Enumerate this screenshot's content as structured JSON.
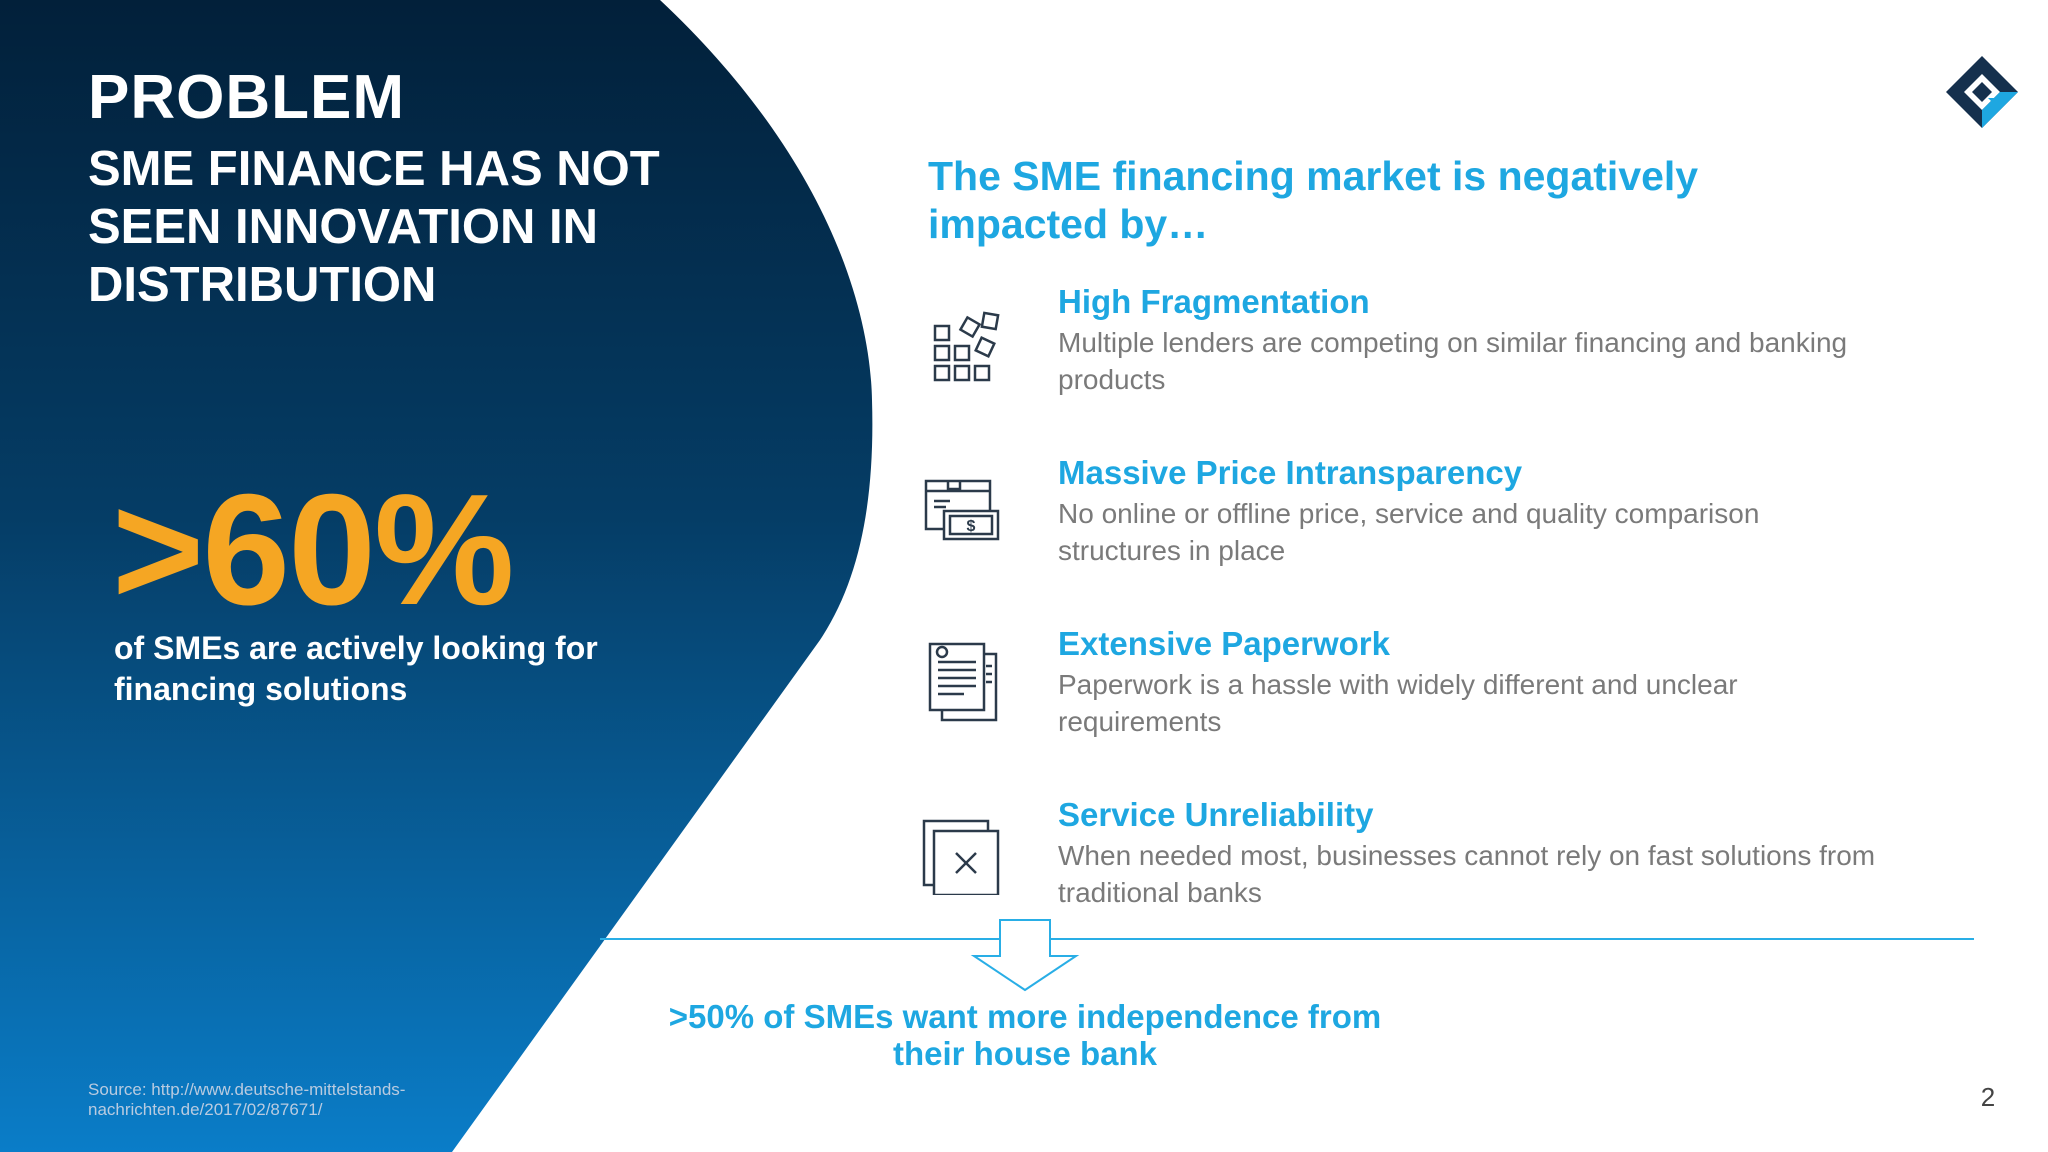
{
  "left_panel": {
    "title": "PROBLEM",
    "subtitle": "SME FINANCE HAS NOT SEEN INNOVATION IN DISTRIBUTION",
    "stat_value": ">60%",
    "stat_caption": "of SMEs are actively looking for financing solutions",
    "source": "Source: http://www.deutsche-mittelstands-nachrichten.de/2017/02/87671/",
    "colors": {
      "gradient_top": "#02203a",
      "gradient_bottom": "#0a7dc8",
      "stat": "#f5a623"
    }
  },
  "right_panel": {
    "headline": "The SME financing market is negatively impacted by…",
    "factors": [
      {
        "title": "High Fragmentation",
        "description": "Multiple lenders are competing on similar financing and banking products",
        "icon": "fragmentation-blocks-icon"
      },
      {
        "title": "Massive Price Intransparency",
        "description": "No online or offline price, service and quality comparison structures in place",
        "icon": "price-tag-money-icon"
      },
      {
        "title": "Extensive Paperwork",
        "description": "Paperwork is a hassle with widely different and unclear requirements",
        "icon": "paper-documents-icon"
      },
      {
        "title": "Service Unreliability",
        "description": "When needed most, businesses cannot rely on fast solutions from traditional banks",
        "icon": "unavailable-window-icon"
      }
    ],
    "conclusion": ">50% of SMEs want more independence from their house bank",
    "colors": {
      "accent": "#1ea7e1",
      "text_gray": "#7a7a7a",
      "icon_stroke": "#2b3a4a"
    }
  },
  "page_number": "2"
}
